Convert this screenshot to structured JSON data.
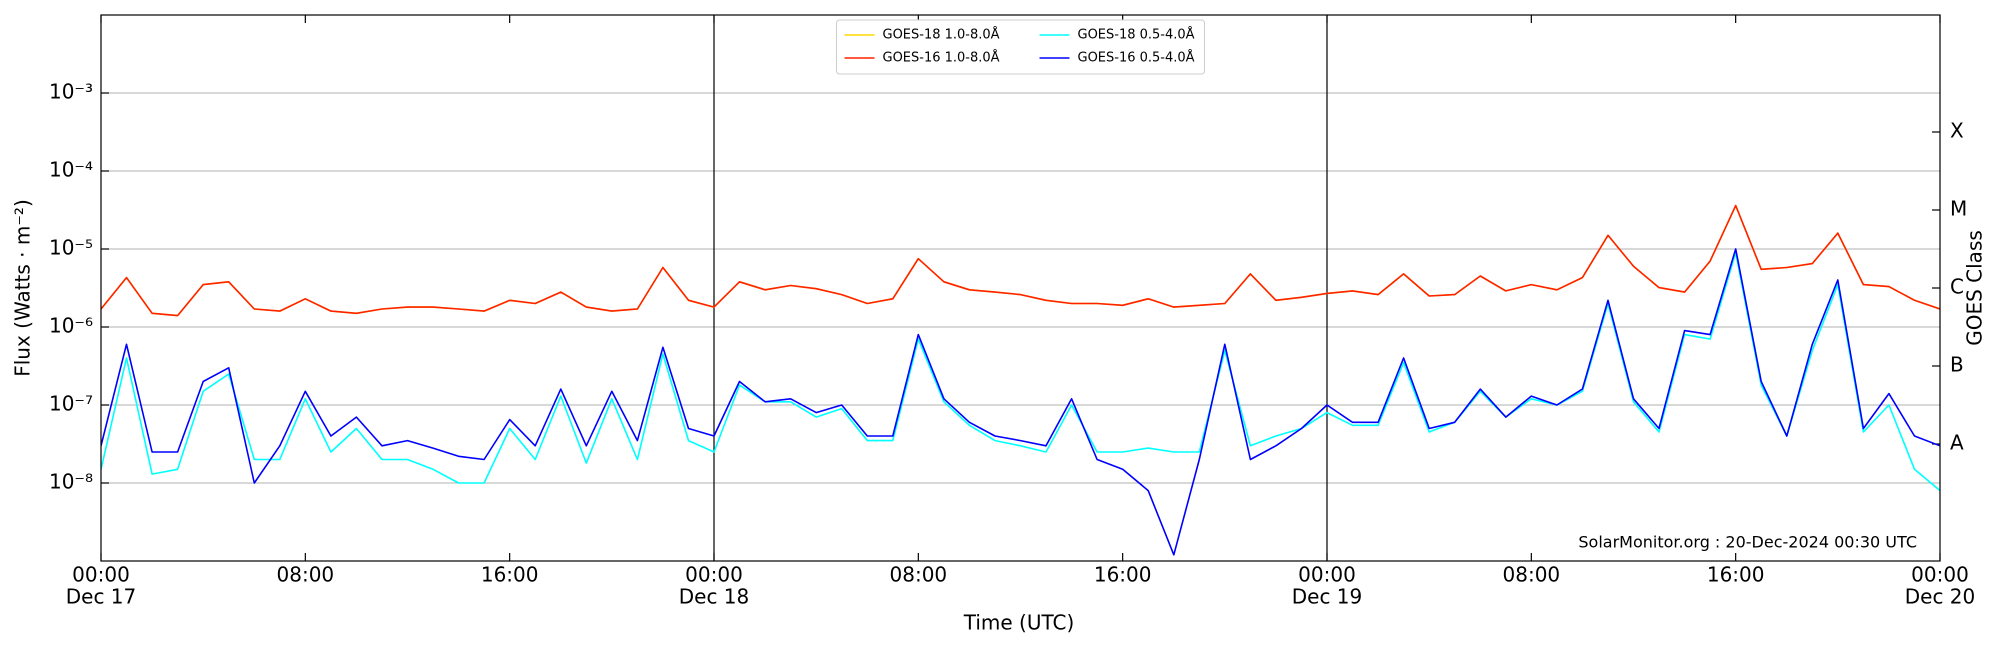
{
  "chart_data": {
    "type": "line",
    "x_label": "Time (UTC)",
    "y_label": "Flux (Watts · m⁻²)",
    "y2_label": "GOES Class",
    "annotation": "SolarMonitor.org : 20-Dec-2024 00:30 UTC",
    "log_scale": true,
    "grid": true,
    "legend_position": "upper center",
    "xlim": [
      0,
      72
    ],
    "ylim": [
      1e-09,
      0.01
    ],
    "y2lim": [
      1e-09,
      0.01
    ],
    "vlines": [
      24,
      48
    ],
    "xticks": [
      {
        "value": 0,
        "label": "00:00",
        "date": "Dec 17"
      },
      {
        "value": 8,
        "label": "08:00"
      },
      {
        "value": 16,
        "label": "16:00"
      },
      {
        "value": 24,
        "label": "00:00",
        "date": "Dec 18"
      },
      {
        "value": 32,
        "label": "08:00"
      },
      {
        "value": 40,
        "label": "16:00"
      },
      {
        "value": 48,
        "label": "00:00",
        "date": "Dec 19"
      },
      {
        "value": 56,
        "label": "08:00"
      },
      {
        "value": 64,
        "label": "16:00"
      },
      {
        "value": 72,
        "label": "00:00",
        "date": "Dec 20"
      }
    ],
    "yticks": [
      {
        "value": 1e-08,
        "label": "10⁻⁸"
      },
      {
        "value": 1e-07,
        "label": "10⁻⁷"
      },
      {
        "value": 1e-06,
        "label": "10⁻⁶"
      },
      {
        "value": 1e-05,
        "label": "10⁻⁵"
      },
      {
        "value": 0.0001,
        "label": "10⁻⁴"
      },
      {
        "value": 0.001,
        "label": "10⁻³"
      }
    ],
    "y2ticks": [
      {
        "value": 3.162e-08,
        "label": "A"
      },
      {
        "value": 3.162e-07,
        "label": "B"
      },
      {
        "value": 3.162e-06,
        "label": "C"
      },
      {
        "value": 3.162e-05,
        "label": "M"
      },
      {
        "value": 0.0003162,
        "label": "X"
      }
    ],
    "x": [
      0,
      1,
      2,
      3,
      4,
      5,
      6,
      7,
      8,
      9,
      10,
      11,
      12,
      13,
      14,
      15,
      16,
      17,
      18,
      19,
      20,
      21,
      22,
      23,
      24,
      25,
      26,
      27,
      28,
      29,
      30,
      31,
      32,
      33,
      34,
      35,
      36,
      37,
      38,
      39,
      40,
      41,
      42,
      43,
      44,
      45,
      46,
      47,
      48,
      49,
      50,
      51,
      52,
      53,
      54,
      55,
      56,
      57,
      58,
      59,
      60,
      61,
      62,
      63,
      64,
      65,
      66,
      67,
      68,
      69,
      70,
      71,
      72
    ],
    "series": [
      {
        "name": "GOES-18 1.0-8.0Å",
        "color": "#ffd700",
        "values": [
          1.7e-06,
          4.3e-06,
          1.5e-06,
          1.4e-06,
          3.5e-06,
          3.8e-06,
          1.7e-06,
          1.6e-06,
          2.3e-06,
          1.6e-06,
          1.5e-06,
          1.7e-06,
          1.8e-06,
          1.8e-06,
          1.7e-06,
          1.6e-06,
          2.2e-06,
          2e-06,
          2.8e-06,
          1.8e-06,
          1.6e-06,
          1.7e-06,
          5.8e-06,
          2.2e-06,
          1.8e-06,
          3.8e-06,
          3e-06,
          3.4e-06,
          3.1e-06,
          2.6e-06,
          2e-06,
          2.3e-06,
          7.5e-06,
          3.8e-06,
          3e-06,
          2.8e-06,
          2.6e-06,
          2.2e-06,
          2e-06,
          2e-06,
          1.9e-06,
          2.3e-06,
          1.8e-06,
          1.9e-06,
          2e-06,
          4.8e-06,
          2.2e-06,
          2.4e-06,
          2.7e-06,
          2.9e-06,
          2.6e-06,
          4.8e-06,
          2.5e-06,
          2.6e-06,
          4.5e-06,
          2.9e-06,
          3.5e-06,
          3e-06,
          4.3e-06,
          1.5e-05,
          6e-06,
          3.2e-06,
          2.8e-06,
          7e-06,
          3.6e-05,
          5.5e-06,
          5.8e-06,
          6.5e-06,
          1.6e-05,
          3.5e-06,
          3.3e-06,
          2.2e-06,
          1.7e-06
        ]
      },
      {
        "name": "GOES-16 1.0-8.0Å",
        "color": "#ff2200",
        "values": [
          1.7e-06,
          4.3e-06,
          1.5e-06,
          1.4e-06,
          3.5e-06,
          3.8e-06,
          1.7e-06,
          1.6e-06,
          2.3e-06,
          1.6e-06,
          1.5e-06,
          1.7e-06,
          1.8e-06,
          1.8e-06,
          1.7e-06,
          1.6e-06,
          2.2e-06,
          2e-06,
          2.8e-06,
          1.8e-06,
          1.6e-06,
          1.7e-06,
          5.8e-06,
          2.2e-06,
          1.8e-06,
          3.8e-06,
          3e-06,
          3.4e-06,
          3.1e-06,
          2.6e-06,
          2e-06,
          2.3e-06,
          7.5e-06,
          3.8e-06,
          3e-06,
          2.8e-06,
          2.6e-06,
          2.2e-06,
          2e-06,
          2e-06,
          1.9e-06,
          2.3e-06,
          1.8e-06,
          1.9e-06,
          2e-06,
          4.8e-06,
          2.2e-06,
          2.4e-06,
          2.7e-06,
          2.9e-06,
          2.6e-06,
          4.8e-06,
          2.5e-06,
          2.6e-06,
          4.5e-06,
          2.9e-06,
          3.5e-06,
          3e-06,
          4.3e-06,
          1.5e-05,
          6e-06,
          3.2e-06,
          2.8e-06,
          7e-06,
          3.6e-05,
          5.5e-06,
          5.8e-06,
          6.5e-06,
          1.6e-05,
          3.5e-06,
          3.3e-06,
          2.2e-06,
          1.7e-06
        ]
      },
      {
        "name": "GOES-18 0.5-4.0Å",
        "color": "#00ffff",
        "values": [
          1.5e-08,
          4e-07,
          1.3e-08,
          1.5e-08,
          1.5e-07,
          2.5e-07,
          2e-08,
          2e-08,
          1.2e-07,
          2.5e-08,
          5e-08,
          2e-08,
          2e-08,
          1.5e-08,
          1e-08,
          1e-08,
          5e-08,
          2e-08,
          1.3e-07,
          1.8e-08,
          1.2e-07,
          2e-08,
          4.5e-07,
          3.5e-08,
          2.5e-08,
          1.8e-07,
          1.1e-07,
          1.1e-07,
          7e-08,
          9e-08,
          3.5e-08,
          3.5e-08,
          7e-07,
          1.1e-07,
          5.5e-08,
          3.5e-08,
          3e-08,
          2.5e-08,
          1e-07,
          2.5e-08,
          2.5e-08,
          2.8e-08,
          2.5e-08,
          2.5e-08,
          5e-07,
          3e-08,
          4e-08,
          5e-08,
          8e-08,
          5.5e-08,
          5.5e-08,
          3.5e-07,
          4.5e-08,
          6e-08,
          1.5e-07,
          7e-08,
          1.2e-07,
          1e-07,
          1.5e-07,
          2e-06,
          1.1e-07,
          4.5e-08,
          8e-07,
          7e-07,
          9e-06,
          1.8e-07,
          4e-08,
          5e-07,
          3.5e-06,
          4.5e-08,
          1e-07,
          1.5e-08,
          8e-09
        ]
      },
      {
        "name": "GOES-16 0.5-4.0Å",
        "color": "#0000ff",
        "values": [
          3e-08,
          6e-07,
          2.5e-08,
          2.5e-08,
          2e-07,
          3e-07,
          1e-08,
          3e-08,
          1.5e-07,
          4e-08,
          7e-08,
          3e-08,
          3.5e-08,
          2.8e-08,
          2.2e-08,
          2e-08,
          6.5e-08,
          3e-08,
          1.6e-07,
          3e-08,
          1.5e-07,
          3.5e-08,
          5.5e-07,
          5e-08,
          4e-08,
          2e-07,
          1.1e-07,
          1.2e-07,
          8e-08,
          1e-07,
          4e-08,
          4e-08,
          8e-07,
          1.2e-07,
          6e-08,
          4e-08,
          3.5e-08,
          3e-08,
          1.2e-07,
          2e-08,
          1.5e-08,
          8e-09,
          1.2e-09,
          2e-08,
          6e-07,
          2e-08,
          3e-08,
          5e-08,
          1e-07,
          6e-08,
          6e-08,
          4e-07,
          5e-08,
          6e-08,
          1.6e-07,
          7e-08,
          1.3e-07,
          1e-07,
          1.6e-07,
          2.2e-06,
          1.2e-07,
          5e-08,
          9e-07,
          8e-07,
          1e-05,
          2e-07,
          4e-08,
          6e-07,
          4e-06,
          5e-08,
          1.4e-07,
          4e-08,
          3e-08
        ]
      }
    ]
  }
}
